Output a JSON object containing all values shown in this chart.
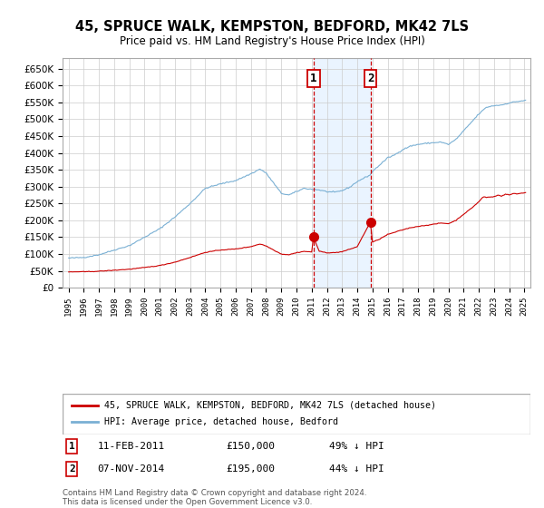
{
  "title": "45, SPRUCE WALK, KEMPSTON, BEDFORD, MK42 7LS",
  "subtitle": "Price paid vs. HM Land Registry's House Price Index (HPI)",
  "ylim": [
    0,
    680000
  ],
  "yticks": [
    0,
    50000,
    100000,
    150000,
    200000,
    250000,
    300000,
    350000,
    400000,
    450000,
    500000,
    550000,
    600000,
    650000
  ],
  "ytick_labels": [
    "£0",
    "£50K",
    "£100K",
    "£150K",
    "£200K",
    "£250K",
    "£300K",
    "£350K",
    "£400K",
    "£450K",
    "£500K",
    "£550K",
    "£600K",
    "£650K"
  ],
  "red_line_label": "45, SPRUCE WALK, KEMPSTON, BEDFORD, MK42 7LS (detached house)",
  "blue_line_label": "HPI: Average price, detached house, Bedford",
  "sale1_date": 2011.12,
  "sale1_price": 150000,
  "sale1_label": "1",
  "sale1_text": "11-FEB-2011",
  "sale1_amount": "£150,000",
  "sale1_pct": "49% ↓ HPI",
  "sale2_date": 2014.87,
  "sale2_price": 195000,
  "sale2_label": "2",
  "sale2_text": "07-NOV-2014",
  "sale2_amount": "£195,000",
  "sale2_pct": "44% ↓ HPI",
  "red_color": "#cc0000",
  "blue_color": "#7ab0d4",
  "shade_color": "#ddeeff",
  "vline_color": "#cc0000",
  "grid_color": "#cccccc",
  "bg_color": "#ffffff",
  "footer": "Contains HM Land Registry data © Crown copyright and database right 2024.\nThis data is licensed under the Open Government Licence v3.0."
}
